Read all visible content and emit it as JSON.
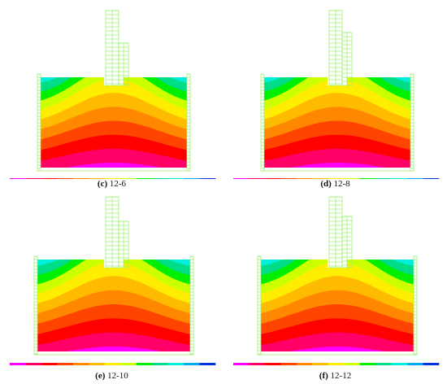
{
  "panels": [
    {
      "letter": "(c)",
      "label": "12-6"
    },
    {
      "letter": "(d)",
      "label": "12-8"
    },
    {
      "letter": "(e)",
      "label": "12-10"
    },
    {
      "letter": "(f)",
      "label": "12-12"
    }
  ],
  "colors": {
    "bands": [
      "#ff00ff",
      "#ff0066",
      "#ff0000",
      "#ff4400",
      "#ff8800",
      "#ffbb00",
      "#ffee00",
      "#ccff00",
      "#00ee00",
      "#00dd88",
      "#00eedd",
      "#00aaee",
      "#0033dd"
    ],
    "mesh": "#99ee66"
  }
}
